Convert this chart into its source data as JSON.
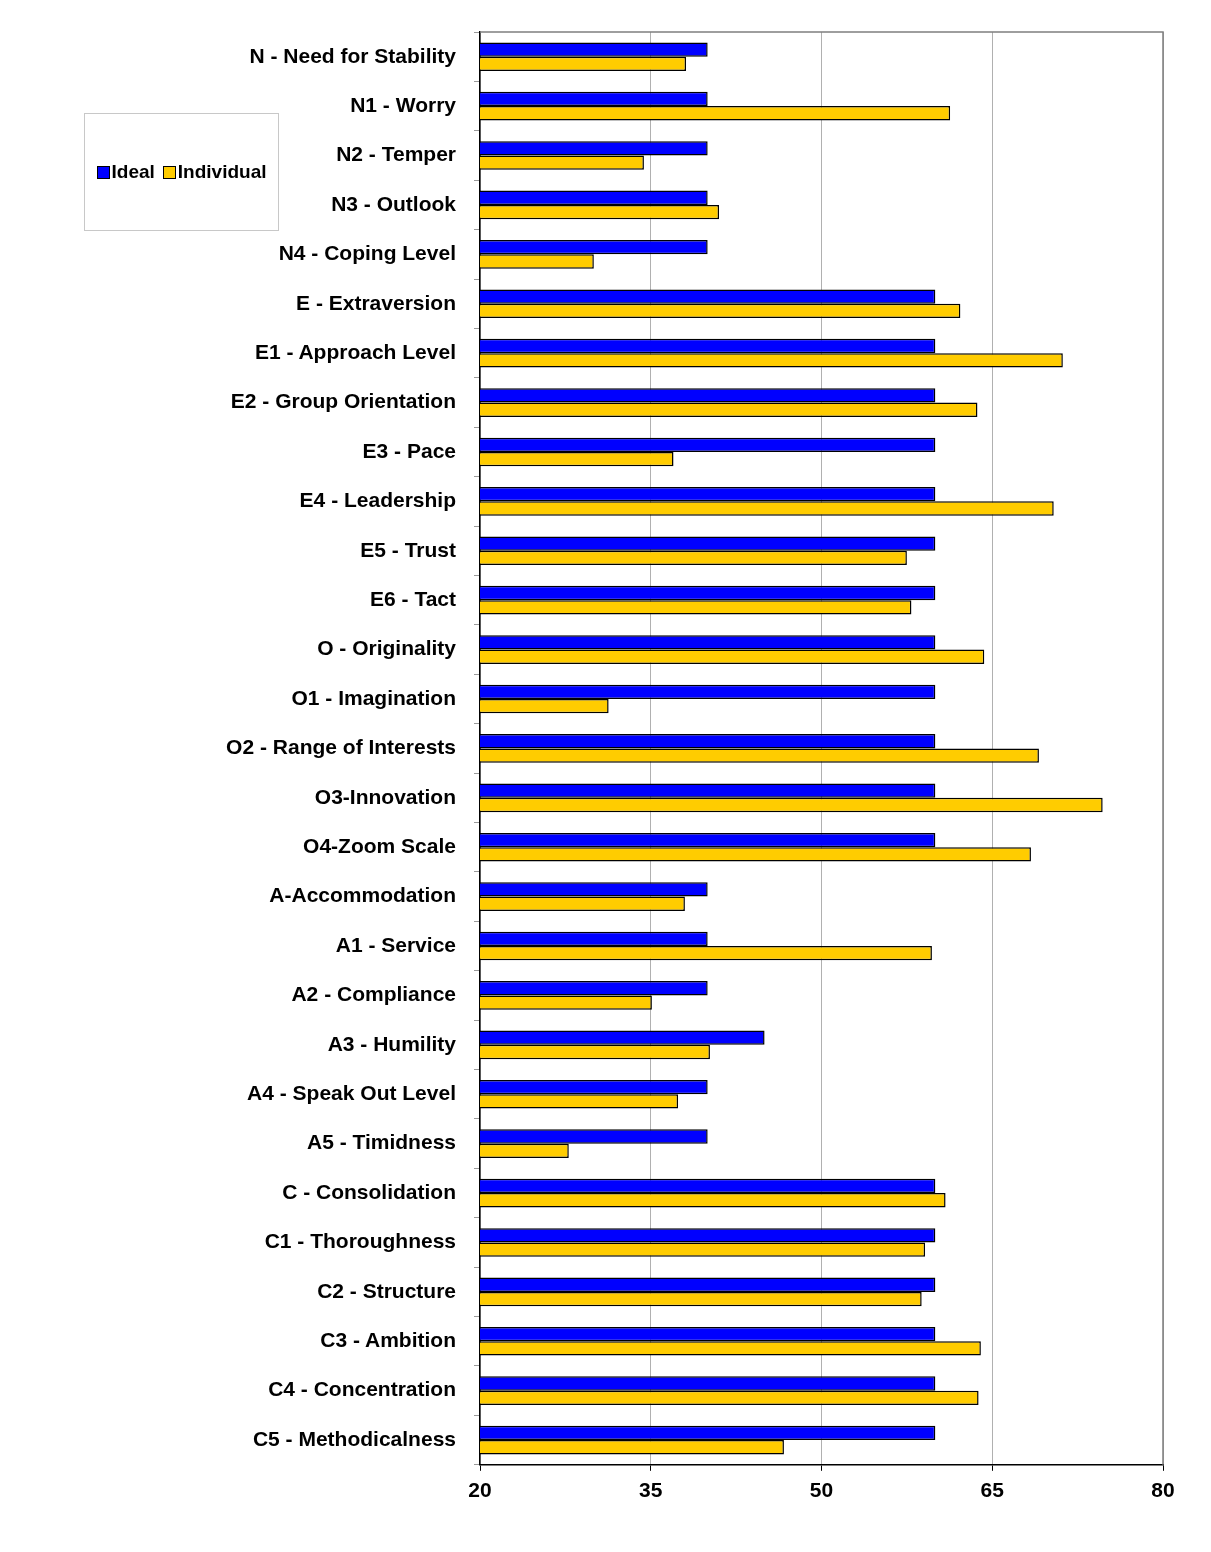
{
  "chart_data": {
    "type": "bar",
    "orientation": "horizontal",
    "categories": [
      "N - Need for Stability",
      "N1 - Worry",
      "N2 - Temper",
      "N3 - Outlook",
      "N4 - Coping Level",
      "E - Extraversion",
      "E1 - Approach Level",
      "E2 - Group Orientation",
      "E3 - Pace",
      "E4 - Leadership",
      "E5 - Trust",
      "E6 - Tact",
      "O - Originality",
      "O1 - Imagination",
      "O2 - Range of Interests",
      "O3-Innovation",
      "O4-Zoom Scale",
      "A-Accommodation",
      "A1 - Service",
      "A2 - Compliance",
      "A3 - Humility",
      "A4 - Speak Out Level",
      "A5 - Timidness",
      "C - Consolidation",
      "C1 - Thoroughness",
      "C2 - Structure",
      "C3 - Ambition",
      "C4 - Concentration",
      "C5 - Methodicalness"
    ],
    "series": [
      {
        "name": "Ideal",
        "color": "#0000ff",
        "values": [
          40,
          40,
          40,
          40,
          40,
          60,
          60,
          60,
          60,
          60,
          60,
          60,
          60,
          60,
          60,
          60,
          60,
          40,
          40,
          40,
          45,
          40,
          40,
          60,
          60,
          60,
          60,
          60,
          60
        ]
      },
      {
        "name": "Individual",
        "color": "#ffcc00",
        "values": [
          38.1,
          61.3,
          34.4,
          41,
          30,
          62.2,
          71.2,
          63.7,
          37,
          70.4,
          57.5,
          57.9,
          64.3,
          31.3,
          69.1,
          74.7,
          68.4,
          38,
          59.7,
          35.1,
          40.2,
          37.4,
          27.8,
          60.9,
          59.1,
          58.8,
          64,
          63.8,
          46.7
        ]
      }
    ],
    "xlim": [
      20,
      80
    ],
    "xticks": [
      20,
      35,
      50,
      65,
      80
    ],
    "grid": "x",
    "legend": "top left"
  }
}
